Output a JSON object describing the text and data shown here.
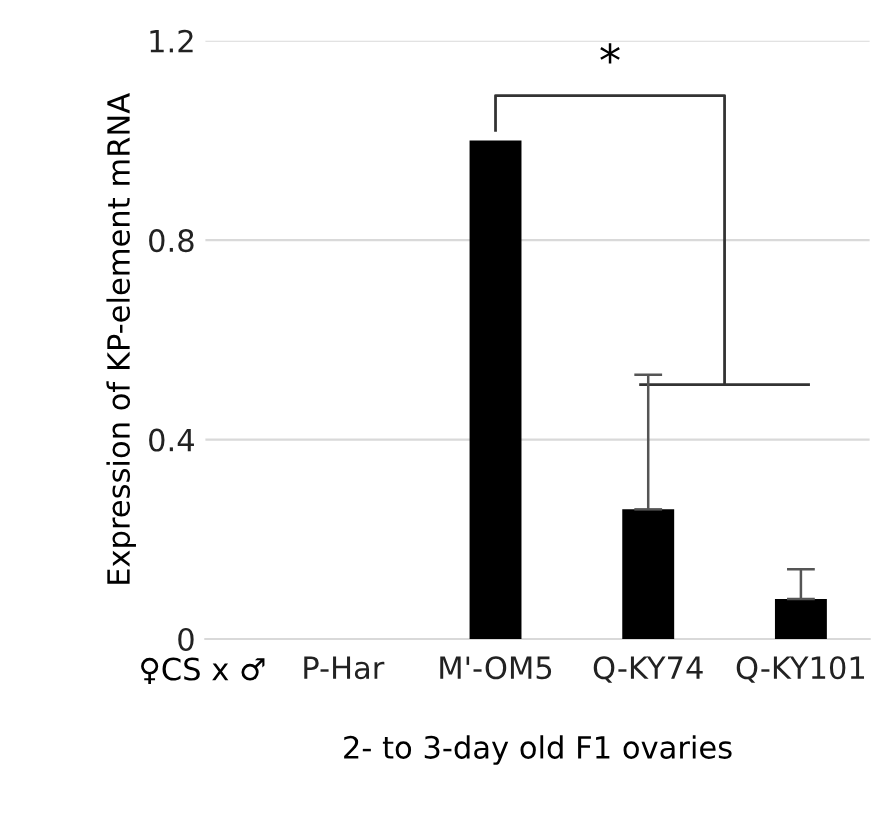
{
  "chart_data": {
    "type": "bar",
    "xlabel": "2- to 3-day old F1 ovaries",
    "ylabel": "Expression of KP-element mRNA",
    "categories": [
      "P-Har",
      "M'-OM5",
      "Q-KY74",
      "Q-KY101"
    ],
    "values": [
      0,
      1.0,
      0.26,
      0.08
    ],
    "errors": [
      null,
      null,
      0.27,
      0.06
    ],
    "color": "#000000",
    "ylim": [
      0,
      1.2
    ],
    "yticks": [
      0,
      0.4,
      0.8,
      1.2
    ],
    "grid": "y",
    "legend": false,
    "annotations": [
      "♀CS x ♂",
      "*"
    ]
  }
}
